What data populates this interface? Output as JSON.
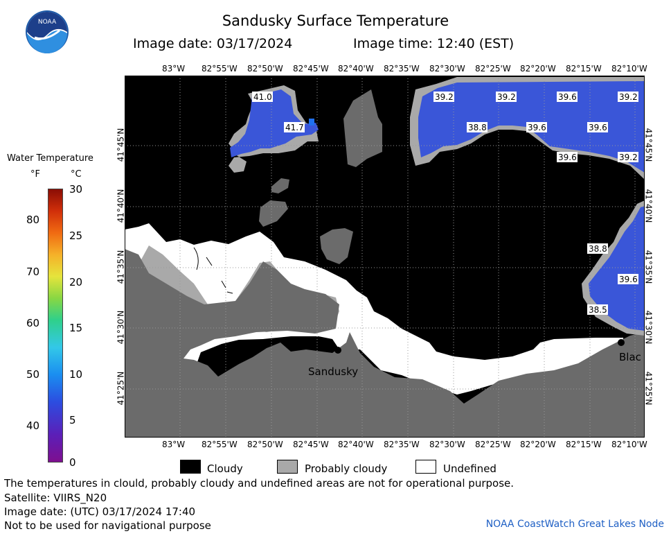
{
  "header": {
    "title": "Sandusky Surface Temperature",
    "image_date": "Image date: 03/17/2024",
    "image_time": "Image time: 12:40 (EST)"
  },
  "logo": {
    "text": "NOAA"
  },
  "map": {
    "lon_ticks": [
      "83°W",
      "82°55'W",
      "82°50'W",
      "82°45'W",
      "82°40'W",
      "82°35'W",
      "82°30'W",
      "82°25'W",
      "82°20'W",
      "82°15'W",
      "82°10'W"
    ],
    "lat_ticks": [
      "41°45'N",
      "41°40'N",
      "41°35'N",
      "41°30'N",
      "41°25'N"
    ],
    "temp_labels": [
      "41.0",
      "41.7",
      "39.2",
      "39.2",
      "39.6",
      "39.2",
      "38.8",
      "39.6",
      "39.6",
      "39.6",
      "39.2",
      "38.8",
      "39.6",
      "38.5"
    ],
    "places": {
      "sandusky": "Sandusky",
      "east_partial": "Blac"
    },
    "colors": {
      "cloudy": "#000000",
      "probably_cloudy": "#a9a9a9",
      "land": "#6b6b6b",
      "undefined": "#ffffff",
      "water_temp": "#3a56d8"
    }
  },
  "legend": {
    "title": "Water Temperature",
    "unit_f": "°F",
    "unit_c": "°C",
    "f_ticks": [
      "80",
      "70",
      "60",
      "50",
      "40"
    ],
    "c_ticks": [
      "30",
      "25",
      "20",
      "15",
      "10",
      "5",
      "0"
    ]
  },
  "key": {
    "cloudy": "Cloudy",
    "probably_cloudy": "Probably cloudy",
    "undefined": "Undefined"
  },
  "notes": {
    "disclaimer": "The temperatures in clould, probably cloudy and undefined areas are not for operational purpose.",
    "satellite": "Satellite: VIIRS_N20",
    "utc_date": "Image date: (UTC) 03/17/2024  17:40",
    "navigation": "Not to be used for navigational purpose",
    "credit": "NOAA CoastWatch Great Lakes Node"
  }
}
